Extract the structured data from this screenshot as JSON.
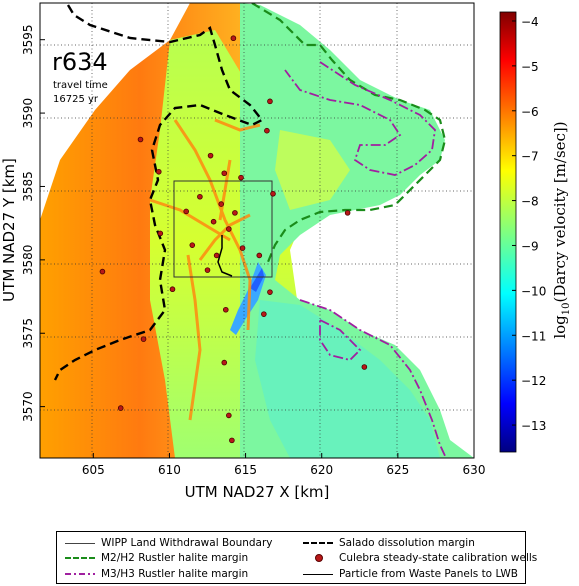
{
  "map": {
    "run_label": "r634",
    "travel_time_label": "travel time",
    "travel_time_value": "16725 yr",
    "x_axis_label": "UTM NAD27 X [km]",
    "y_axis_label": "UTM NAD27 Y [km]",
    "x_ticks": [
      "605",
      "610",
      "615",
      "620",
      "625",
      "630"
    ],
    "y_ticks": [
      "3570",
      "3575",
      "3580",
      "3585",
      "3590",
      "3595"
    ],
    "x_range": [
      601.5,
      630
    ],
    "y_range": [
      3566.5,
      3597.5
    ],
    "grid": "dotted"
  },
  "colorbar": {
    "label": "log10(Darcy velocity [m/sec])",
    "label_base": "log",
    "label_sub": "10",
    "label_rest": "(Darcy velocity  [m/sec])",
    "ticks": [
      "-4",
      "-5",
      "-6",
      "-7",
      "-8",
      "-9",
      "-10",
      "-11",
      "-12",
      "-13"
    ],
    "range": [
      -13.6,
      -3.8
    ],
    "colors": [
      "#000080",
      "#0000ff",
      "#0080ff",
      "#00ffff",
      "#80ff80",
      "#ffff00",
      "#ff8000",
      "#ff0000",
      "#800000"
    ]
  },
  "legend": {
    "items": [
      {
        "key": "boundary",
        "label": "WIPP Land Withdrawal Boundary"
      },
      {
        "key": "salado",
        "label": "Salado dissolution margin"
      },
      {
        "key": "m2h2",
        "label": "M2/H2 Rustler halite margin"
      },
      {
        "key": "wells",
        "label": "Culebra steady-state calibration wells"
      },
      {
        "key": "m3h3",
        "label": "M3/H3 Rustler halite margin"
      },
      {
        "key": "particle",
        "label": "Particle from Waste Panels to LWB"
      }
    ]
  },
  "wells": [
    {
      "x": 614.2,
      "y": 3595.1
    },
    {
      "x": 616.4,
      "y": 3588.8
    },
    {
      "x": 608.1,
      "y": 3588.2
    },
    {
      "x": 612.7,
      "y": 3587.1
    },
    {
      "x": 609.3,
      "y": 3586.0
    },
    {
      "x": 613.6,
      "y": 3585.9
    },
    {
      "x": 614.7,
      "y": 3585.6
    },
    {
      "x": 612.0,
      "y": 3584.3
    },
    {
      "x": 613.4,
      "y": 3583.8
    },
    {
      "x": 616.8,
      "y": 3584.5
    },
    {
      "x": 621.7,
      "y": 3583.2
    },
    {
      "x": 611.1,
      "y": 3583.3
    },
    {
      "x": 614.3,
      "y": 3583.2
    },
    {
      "x": 612.9,
      "y": 3582.6
    },
    {
      "x": 613.9,
      "y": 3582.1
    },
    {
      "x": 609.4,
      "y": 3581.8
    },
    {
      "x": 611.5,
      "y": 3581.0
    },
    {
      "x": 614.8,
      "y": 3580.8
    },
    {
      "x": 613.1,
      "y": 3580.3
    },
    {
      "x": 615.9,
      "y": 3580.3
    },
    {
      "x": 612.5,
      "y": 3579.3
    },
    {
      "x": 605.6,
      "y": 3579.2
    },
    {
      "x": 610.2,
      "y": 3578.0
    },
    {
      "x": 616.6,
      "y": 3577.8
    },
    {
      "x": 613.7,
      "y": 3576.6
    },
    {
      "x": 616.2,
      "y": 3576.3
    },
    {
      "x": 608.3,
      "y": 3574.6
    },
    {
      "x": 613.6,
      "y": 3573.0
    },
    {
      "x": 622.8,
      "y": 3572.7
    },
    {
      "x": 606.8,
      "y": 3569.9
    },
    {
      "x": 613.9,
      "y": 3569.4
    },
    {
      "x": 614.1,
      "y": 3567.7
    },
    {
      "x": 616.6,
      "y": 3590.8
    }
  ]
}
